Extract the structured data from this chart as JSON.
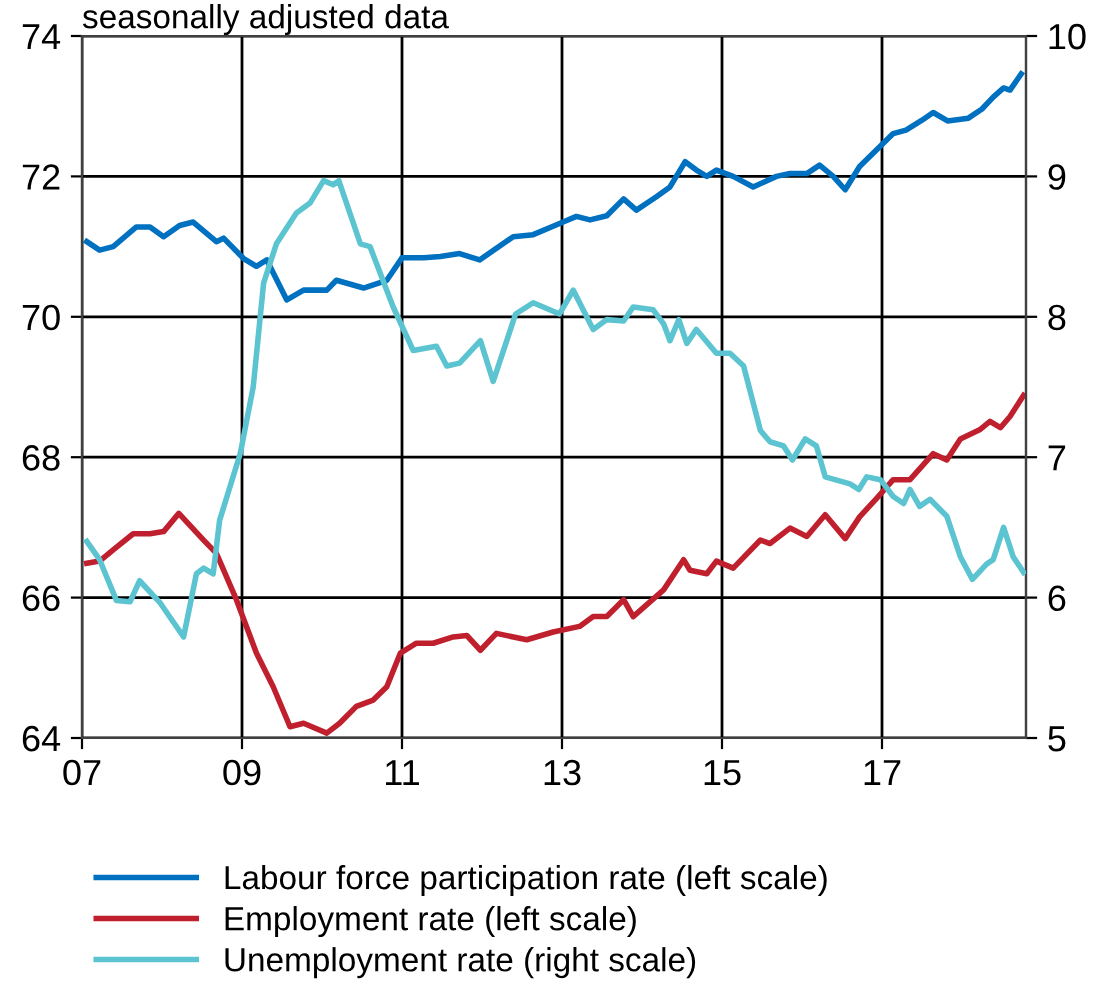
{
  "chart_data": {
    "type": "line",
    "subtitle": "seasonally adjusted data",
    "xlim": [
      2007,
      2018.8
    ],
    "xticks": [
      {
        "value": 2007,
        "label": "07"
      },
      {
        "value": 2009,
        "label": "09"
      },
      {
        "value": 2011,
        "label": "11"
      },
      {
        "value": 2013,
        "label": "13"
      },
      {
        "value": 2015,
        "label": "15"
      },
      {
        "value": 2017,
        "label": "17"
      }
    ],
    "ylim": [
      64,
      74
    ],
    "yticks": [
      64,
      66,
      68,
      70,
      72,
      74
    ],
    "y2lim": [
      5,
      10
    ],
    "y2ticks": [
      5,
      6,
      7,
      8,
      9,
      10
    ],
    "grid": true,
    "legend": "bottom",
    "series": [
      {
        "name": "Labour force participation rate (left scale)",
        "color": "#0070c0",
        "x": [
          2007.06,
          2007.22,
          2007.39,
          2007.68,
          2007.85,
          2008.02,
          2008.22,
          2008.39,
          2008.68,
          2008.77,
          2009.02,
          2009.18,
          2009.31,
          2009.56,
          2009.77,
          2010.06,
          2010.18,
          2010.52,
          2010.81,
          2011.0,
          2011.27,
          2011.48,
          2011.72,
          2011.97,
          2012.39,
          2012.64,
          2012.97,
          2013.18,
          2013.35,
          2013.56,
          2013.77,
          2013.93,
          2014.18,
          2014.35,
          2014.54,
          2014.68,
          2014.81,
          2014.93,
          2015.14,
          2015.39,
          2015.68,
          2015.85,
          2016.06,
          2016.22,
          2016.39,
          2016.54,
          2016.72,
          2017.14,
          2017.3,
          2017.5,
          2017.64,
          2017.82,
          2018.08,
          2018.25,
          2018.39,
          2018.52,
          2018.6,
          2018.74
        ],
        "values": [
          71.07,
          70.95,
          71.0,
          71.28,
          71.28,
          71.14,
          71.3,
          71.35,
          71.07,
          71.12,
          70.83,
          70.72,
          70.81,
          70.24,
          70.38,
          70.38,
          70.52,
          70.41,
          70.52,
          70.84,
          70.84,
          70.86,
          70.9,
          70.81,
          71.14,
          71.17,
          71.33,
          71.43,
          71.38,
          71.44,
          71.68,
          71.52,
          71.71,
          71.85,
          72.21,
          72.09,
          72.0,
          72.09,
          72.0,
          71.85,
          72.0,
          72.04,
          72.04,
          72.16,
          72.0,
          71.81,
          72.14,
          72.61,
          72.66,
          72.8,
          72.91,
          72.79,
          72.83,
          72.96,
          73.13,
          73.26,
          73.23,
          73.46
        ]
      },
      {
        "name": "Employment rate (left scale)",
        "color": "#c0202e",
        "x": [
          2007.06,
          2007.22,
          2007.39,
          2007.64,
          2007.85,
          2008.02,
          2008.21,
          2008.52,
          2008.68,
          2008.93,
          2009.18,
          2009.39,
          2009.6,
          2009.77,
          2010.06,
          2010.22,
          2010.43,
          2010.64,
          2010.81,
          2010.98,
          2011.18,
          2011.39,
          2011.64,
          2011.81,
          2011.98,
          2012.18,
          2012.56,
          2012.89,
          2013.22,
          2013.39,
          2013.56,
          2013.77,
          2013.89,
          2014.27,
          2014.52,
          2014.6,
          2014.81,
          2014.93,
          2015.14,
          2015.48,
          2015.6,
          2015.85,
          2016.06,
          2016.29,
          2016.54,
          2016.72,
          2016.93,
          2017.14,
          2017.35,
          2017.64,
          2017.81,
          2017.98,
          2018.22,
          2018.35,
          2018.48,
          2018.6,
          2018.77
        ],
        "values": [
          66.49,
          66.52,
          66.68,
          66.91,
          66.91,
          66.94,
          67.2,
          66.82,
          66.63,
          65.97,
          65.21,
          64.73,
          64.16,
          64.21,
          64.07,
          64.21,
          64.45,
          64.54,
          64.73,
          65.21,
          65.35,
          65.35,
          65.44,
          65.46,
          65.25,
          65.49,
          65.4,
          65.51,
          65.59,
          65.73,
          65.73,
          65.97,
          65.73,
          66.11,
          66.54,
          66.39,
          66.34,
          66.52,
          66.42,
          66.82,
          66.77,
          66.99,
          66.87,
          67.18,
          66.84,
          67.15,
          67.41,
          67.68,
          67.68,
          68.05,
          67.96,
          68.26,
          68.39,
          68.51,
          68.42,
          68.58,
          68.88
        ]
      },
      {
        "name": "Unemployment rate (right scale)",
        "color": "#5bc4d0",
        "axis": "y2",
        "x": [
          2007.06,
          2007.22,
          2007.43,
          2007.6,
          2007.72,
          2007.98,
          2008.1,
          2008.27,
          2008.43,
          2008.52,
          2008.64,
          2008.72,
          2008.98,
          2009.14,
          2009.27,
          2009.43,
          2009.68,
          2009.85,
          2010.02,
          2010.14,
          2010.21,
          2010.48,
          2010.6,
          2010.89,
          2011.14,
          2011.43,
          2011.56,
          2011.72,
          2011.98,
          2012.14,
          2012.42,
          2012.64,
          2012.97,
          2013.14,
          2013.39,
          2013.56,
          2013.77,
          2013.89,
          2014.14,
          2014.27,
          2014.35,
          2014.46,
          2014.56,
          2014.68,
          2014.93,
          2015.1,
          2015.27,
          2015.48,
          2015.6,
          2015.77,
          2015.88,
          2016.04,
          2016.18,
          2016.29,
          2016.6,
          2016.71,
          2016.81,
          2016.98,
          2017.14,
          2017.27,
          2017.35,
          2017.47,
          2017.6,
          2017.81,
          2017.98,
          2018.13,
          2018.31,
          2018.39,
          2018.52,
          2018.64,
          2018.77
        ],
        "values": [
          6.4,
          6.27,
          5.98,
          5.97,
          6.12,
          5.96,
          5.86,
          5.72,
          6.17,
          6.21,
          6.17,
          6.55,
          7.03,
          7.5,
          8.24,
          8.52,
          8.74,
          8.81,
          8.97,
          8.94,
          8.97,
          8.52,
          8.5,
          8.07,
          7.76,
          7.79,
          7.65,
          7.67,
          7.83,
          7.54,
          8.02,
          8.1,
          8.02,
          8.19,
          7.91,
          7.98,
          7.97,
          8.07,
          8.05,
          7.95,
          7.83,
          7.98,
          7.81,
          7.91,
          7.74,
          7.74,
          7.65,
          7.19,
          7.11,
          7.08,
          6.98,
          7.13,
          7.08,
          6.86,
          6.81,
          6.77,
          6.86,
          6.84,
          6.72,
          6.67,
          6.77,
          6.65,
          6.7,
          6.58,
          6.29,
          6.13,
          6.24,
          6.27,
          6.5,
          6.29,
          6.18
        ]
      }
    ]
  }
}
